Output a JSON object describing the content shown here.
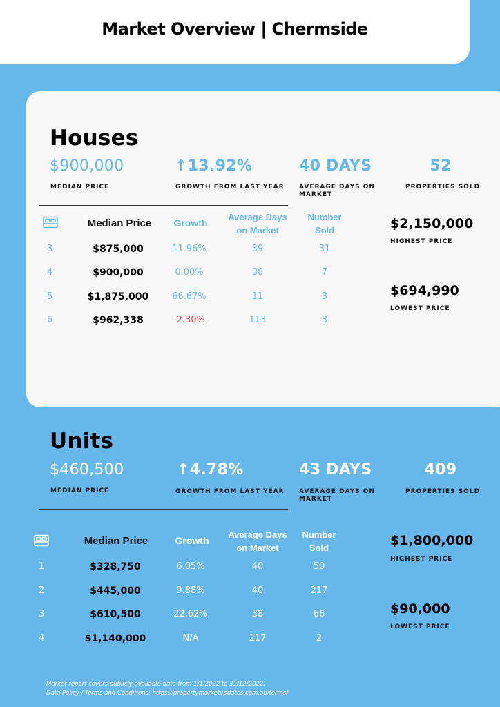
{
  "title": "Market Overview | Chermside",
  "table_headers": {
    "median_price": "Median Price",
    "growth": "Growth",
    "average_days": "Average Days on Market",
    "number_sold": "Number Sold"
  },
  "houses": {
    "title": "Houses",
    "median_price": "$900,000",
    "median_price_label": "MEDIAN PRICE",
    "growth_arrow": "↑",
    "growth": "13.92%",
    "growth_label": "GROWTH FROM LAST YEAR",
    "avg_days": "40 DAYS",
    "avg_days_label": "AVERAGE DAYS ON MARKET",
    "sold": "52",
    "sold_label": "PROPERTIES SOLD",
    "highest_price": "$2,150,000",
    "highest_label": "HIGHEST PRICE",
    "lowest_price": "$694,990",
    "lowest_label": "LOWEST PRICE",
    "icon": "bed-icon",
    "rows": [
      {
        "bedrooms": "3",
        "median": "$875,000",
        "growth": "11.96%",
        "days": "39",
        "sold": "31"
      },
      {
        "bedrooms": "4",
        "median": "$900,000",
        "growth": "0.00%",
        "days": "38",
        "sold": "7"
      },
      {
        "bedrooms": "5",
        "median": "$1,875,000",
        "growth": "66.67%",
        "days": "11",
        "sold": "3"
      },
      {
        "bedrooms": "6",
        "median": "$962,338",
        "growth": "-2.30%",
        "days": "113",
        "sold": "3"
      }
    ]
  },
  "units": {
    "title": "Units",
    "median_price": "$460,500",
    "median_price_label": "MEDIAN PRICE",
    "growth_arrow": "↑",
    "growth": "4.78%",
    "growth_label": "GROWTH FROM LAST YEAR",
    "avg_days": "43 DAYS",
    "avg_days_label": "AVERAGE DAYS ON MARKET",
    "sold": "409",
    "sold_label": "PROPERTIES SOLD",
    "highest_price": "$1,800,000",
    "highest_label": "HIGHEST PRICE",
    "lowest_price": "$90,000",
    "lowest_label": "LOWEST PRICE",
    "icon": "bed-icon",
    "rows": [
      {
        "bedrooms": "1",
        "median": "$328,750",
        "growth": "6.05%",
        "days": "40",
        "sold": "50"
      },
      {
        "bedrooms": "2",
        "median": "$445,000",
        "growth": "9.88%",
        "days": "40",
        "sold": "217"
      },
      {
        "bedrooms": "3",
        "median": "$610,500",
        "growth": "22.62%",
        "days": "38",
        "sold": "66"
      },
      {
        "bedrooms": "4",
        "median": "$1,140,000",
        "growth": "N/A",
        "days": "217",
        "sold": "2"
      }
    ]
  },
  "footer": {
    "line1": "Market report covers publicly available data from 1/1/2022 to 31/12/2022.",
    "line2": "Data Policy / Terms and Conditions: https://propertymarketupdates.com.au/terms/"
  },
  "colors": {
    "accent": "#67b8ea",
    "negative": "#e05050",
    "card": "#f8f8f8"
  }
}
